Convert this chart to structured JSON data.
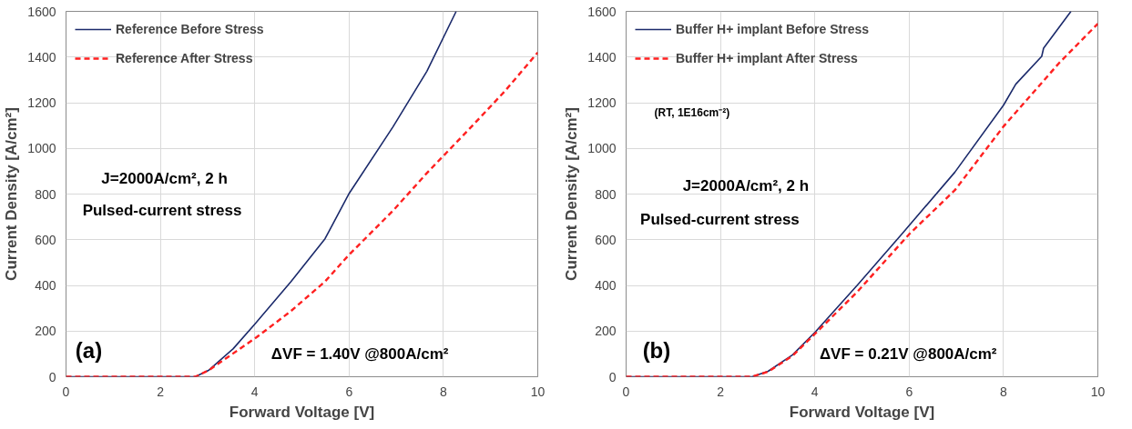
{
  "chart_data": [
    {
      "type": "line",
      "xlabel": "Forward Voltage [V]",
      "ylabel": "Current Density [A/cm²]",
      "xlim": [
        0,
        10
      ],
      "ylim": [
        0,
        1600
      ],
      "xticks": [
        0,
        2,
        4,
        6,
        8,
        10
      ],
      "yticks": [
        0,
        200,
        400,
        600,
        800,
        1000,
        1200,
        1400,
        1600
      ],
      "grid": true,
      "legend": "top left",
      "annotations": [
        "J=2000A/cm², 2 h",
        "Pulsed-current stress",
        "(a)",
        "ΔVF = 1.40V @800A/cm²"
      ],
      "series": [
        {
          "name": "Reference Before Stress",
          "color": "#1b2a6b",
          "line_style": "solid",
          "x": [
            0,
            2.74,
            3.03,
            3.54,
            4.0,
            4.77,
            5.49,
            5.99,
            6.93,
            7.65,
            8.27
          ],
          "values": [
            0,
            0,
            29,
            122,
            230,
            417,
            604,
            799,
            1094,
            1338,
            1600
          ]
        },
        {
          "name": "Reference After Stress",
          "color": "#ff2020",
          "line_style": "dashed",
          "x": [
            0,
            2.74,
            3.03,
            4.04,
            4.77,
            5.49,
            5.99,
            6.93,
            7.65,
            8.59,
            9.3,
            10
          ],
          "values": [
            0,
            0,
            29,
            173,
            288,
            417,
            532,
            727,
            892,
            1094,
            1250,
            1420
          ]
        }
      ]
    },
    {
      "type": "line",
      "xlabel": "Forward Voltage [V]",
      "ylabel": "Current Density [A/cm²]",
      "xlim": [
        0,
        10
      ],
      "ylim": [
        0,
        1600
      ],
      "xticks": [
        0,
        2,
        4,
        6,
        8,
        10
      ],
      "yticks": [
        0,
        200,
        400,
        600,
        800,
        1000,
        1200,
        1400,
        1600
      ],
      "grid": true,
      "legend": "top left",
      "annotations": [
        "(RT, 1E16cm⁻²)",
        "J=2000A/cm², 2 h",
        "Pulsed-current stress",
        "(b)",
        "ΔVF = 0.21V @800A/cm²"
      ],
      "series": [
        {
          "name": "Buffer H+ implant Before Stress",
          "color": "#1b2a6b",
          "line_style": "solid",
          "x": [
            0,
            2.67,
            3.01,
            3.53,
            4.01,
            4.91,
            5.87,
            6.97,
            8.0,
            8.26,
            8.81,
            8.85,
            9.43
          ],
          "values": [
            0,
            0,
            24,
            96,
            196,
            403,
            631,
            896,
            1189,
            1281,
            1403,
            1439,
            1600
          ]
        },
        {
          "name": "Buffer H+ implant After Stress",
          "color": "#ff2020",
          "line_style": "dashed",
          "x": [
            0,
            2.67,
            3.01,
            3.53,
            4.01,
            4.91,
            6.0,
            6.97,
            8.0,
            9.18,
            10
          ],
          "values": [
            0,
            0,
            22,
            92,
            189,
            374,
            624,
            817,
            1096,
            1374,
            1546
          ]
        }
      ]
    }
  ]
}
